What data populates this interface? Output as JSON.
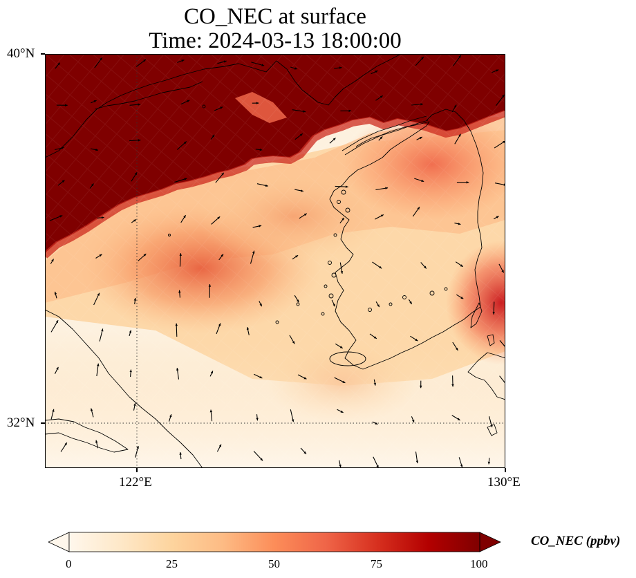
{
  "title": {
    "line1": "CO_NEC at surface",
    "line2": "Time: 2024-03-13 18:00:00"
  },
  "map": {
    "extent": {
      "lon": [
        118,
        130
      ],
      "lat": [
        30.8,
        40
      ]
    },
    "lat_ticks": [
      {
        "value": 40,
        "label": "40°N"
      },
      {
        "value": 32,
        "label": "32°N"
      }
    ],
    "lon_ticks": [
      {
        "value": 122,
        "label": "122°E"
      },
      {
        "value": 130,
        "label": "130°E"
      }
    ],
    "gridlines": {
      "lon": [
        122
      ],
      "lat": [
        32
      ],
      "style": "dotted"
    },
    "coastlines": true,
    "wind_vectors": true
  },
  "colorbar": {
    "label": "CO_NEC (ppbv)",
    "min": 0,
    "max": 100,
    "extend": "both",
    "ticks": [
      {
        "value": 0,
        "label": "0"
      },
      {
        "value": 25,
        "label": "25"
      },
      {
        "value": 50,
        "label": "50"
      },
      {
        "value": 75,
        "label": "75"
      },
      {
        "value": 100,
        "label": "100"
      }
    ],
    "colormap_stops": [
      "#fff7ec",
      "#fee8c8",
      "#fdd49e",
      "#fdbb84",
      "#fc8d59",
      "#ef6548",
      "#d7301f",
      "#b30000",
      "#7f0000"
    ]
  },
  "chart_data": {
    "type": "heatmap",
    "variable": "CO_NEC",
    "units": "ppbv",
    "level": "surface",
    "time": "2024-03-13 18:00:00",
    "x_axis": "longitude",
    "y_axis": "latitude",
    "xlim": [
      118,
      130
    ],
    "ylim": [
      30.8,
      40
    ],
    "vmin": 0,
    "vmax": 100
  }
}
